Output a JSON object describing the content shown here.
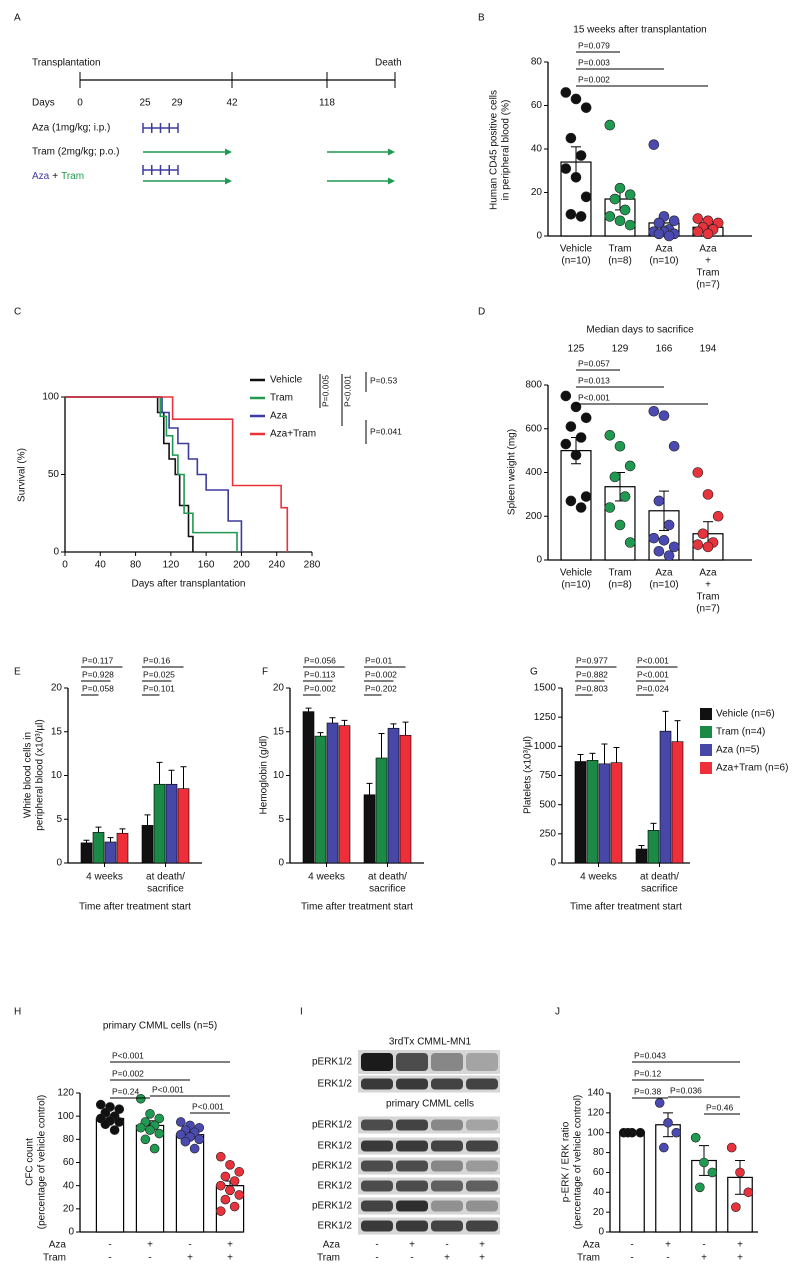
{
  "chart_data": [
    {
      "type": "timeline",
      "panel": "A",
      "start_label": "Transplantation",
      "end_label": "Death",
      "axis_label": "Days",
      "xticks": [
        0,
        25,
        29,
        42,
        118
      ],
      "arms": [
        {
          "name": "Aza (1mg/kg; i.p.)",
          "color": "#3c3ca0"
        },
        {
          "name": "Tram (2mg/kg; p.o.)",
          "color": "#1f9a50"
        },
        {
          "parts": [
            {
              "text": "Aza",
              "color": "#3c3ca0"
            },
            {
              "text": "+",
              "color": "#111111"
            },
            {
              "text": "Tram",
              "color": "#1f9a50"
            }
          ]
        }
      ]
    },
    {
      "type": "bar",
      "panel": "B",
      "title": "15 weeks after transplantation",
      "ylabel": [
        "Human CD45 positive cells",
        "in peripheral blood (%)"
      ],
      "categories": [
        [
          "Vehicle",
          "(n=10)"
        ],
        [
          "Tram",
          "(n=8)"
        ],
        [
          "Aza",
          "(n=10)"
        ],
        [
          "Aza",
          "+",
          "Tram",
          "(n=7)"
        ]
      ],
      "values": [
        34,
        17,
        6,
        4
      ],
      "errors": [
        7,
        5,
        3,
        1.5
      ],
      "points": [
        [
          66,
          63,
          59,
          45,
          37,
          31,
          27,
          18,
          10,
          9
        ],
        [
          51,
          22,
          19,
          17,
          12,
          9,
          7,
          5
        ],
        [
          42,
          9,
          7,
          6,
          3,
          2,
          2,
          1,
          1,
          0
        ],
        [
          8,
          7,
          6,
          4,
          3,
          2,
          1
        ]
      ],
      "point_colors": [
        "#111111",
        "#1f9a50",
        "#4a4ab0",
        "#e8323c"
      ],
      "comparisons": [
        "P=0.079",
        "P=0.003",
        "P=0.002"
      ],
      "ylim": [
        0,
        80
      ],
      "yticks": [
        0,
        20,
        40,
        60,
        80
      ]
    },
    {
      "type": "line",
      "panel": "C",
      "ylabel": [
        "Survival (%)"
      ],
      "xlabel": "Days after transplantation",
      "series": [
        {
          "name": "Vehicle",
          "color": "#111111",
          "x": [
            0,
            105,
            105,
            112,
            112,
            118,
            118,
            125,
            125,
            130,
            130,
            140,
            140,
            145,
            145
          ],
          "values": [
            100,
            100,
            90,
            90,
            70,
            70,
            60,
            60,
            50,
            50,
            30,
            30,
            10,
            10,
            0
          ]
        },
        {
          "name": "Tram",
          "color": "#1f9a50",
          "x": [
            0,
            108,
            108,
            115,
            115,
            122,
            122,
            128,
            128,
            135,
            135,
            145,
            145,
            195,
            195
          ],
          "values": [
            100,
            100,
            87.5,
            87.5,
            75,
            75,
            62.5,
            62.5,
            50,
            50,
            25,
            25,
            12.5,
            12.5,
            0
          ]
        },
        {
          "name": "Aza",
          "color": "#3c3ca0",
          "x": [
            0,
            110,
            110,
            118,
            118,
            128,
            128,
            140,
            140,
            150,
            150,
            160,
            160,
            185,
            185,
            200,
            200
          ],
          "values": [
            100,
            100,
            90,
            90,
            80,
            80,
            70,
            70,
            60,
            60,
            50,
            50,
            40,
            40,
            20,
            20,
            0
          ]
        },
        {
          "name": "Aza+Tram",
          "color": "#e8323c",
          "x": [
            0,
            122,
            122,
            190,
            190,
            245,
            245,
            252,
            252
          ],
          "values": [
            100,
            100,
            85.7,
            85.7,
            42.9,
            42.9,
            28.6,
            28.6,
            0
          ]
        }
      ],
      "p_values": [
        "P=0.005",
        "P<0.001",
        "P=0.53",
        "P=0.041"
      ],
      "xlim": [
        0,
        280
      ],
      "xticks": [
        0,
        40,
        80,
        120,
        160,
        200,
        240,
        280
      ],
      "ylim": [
        0,
        100
      ],
      "yticks": [
        0,
        50,
        100
      ]
    },
    {
      "type": "bar",
      "panel": "D",
      "title": "Median days to sacrifice",
      "median_days": [
        125,
        129,
        166,
        194
      ],
      "ylabel": [
        "Spleen weight (mg)"
      ],
      "categories": [
        [
          "Vehicle",
          "(n=10)"
        ],
        [
          "Tram",
          "(n=8)"
        ],
        [
          "Aza",
          "(n=10)"
        ],
        [
          "Aza",
          "+",
          "Tram",
          "(n=7)"
        ]
      ],
      "values": [
        500,
        335,
        225,
        120
      ],
      "errors": [
        60,
        65,
        90,
        55
      ],
      "points": [
        [
          750,
          700,
          650,
          610,
          560,
          530,
          480,
          290,
          270,
          240
        ],
        [
          570,
          520,
          430,
          380,
          290,
          240,
          160,
          80
        ],
        [
          680,
          660,
          520,
          270,
          160,
          100,
          90,
          60,
          40,
          20
        ],
        [
          400,
          300,
          200,
          120,
          80,
          70,
          60
        ]
      ],
      "point_colors": [
        "#111111",
        "#1f9a50",
        "#4a4ab0",
        "#e8323c"
      ],
      "comparisons": [
        "P=0.057",
        "P=0.013",
        "P<0.001"
      ],
      "ylim": [
        0,
        800
      ],
      "yticks": [
        0,
        200,
        400,
        600,
        800
      ]
    },
    {
      "type": "bar",
      "panel": "E",
      "ylabel": [
        "White blood cells in",
        "peripheral blood (x10³/µl)"
      ],
      "xlabel": "Time after treatment start",
      "categories": [
        [
          "4 weeks"
        ],
        [
          "at death/",
          "sacrifice"
        ]
      ],
      "series": [
        {
          "color": "#111111",
          "values": [
            2.3,
            4.3
          ],
          "errors": [
            0.3,
            1.2
          ]
        },
        {
          "color": "#1b8a46",
          "values": [
            3.5,
            9
          ],
          "errors": [
            0.6,
            2.5
          ]
        },
        {
          "color": "#4747a8",
          "values": [
            2.4,
            9
          ],
          "errors": [
            0.5,
            1.6
          ]
        },
        {
          "color": "#ee2f3a",
          "values": [
            3.4,
            8.5
          ],
          "errors": [
            0.5,
            2.5
          ]
        }
      ],
      "comparisons": [
        [
          "P=0.117",
          "P=0.928",
          "P=0.058"
        ],
        [
          "P=0.16",
          "P=0.025",
          "P=0.101"
        ]
      ],
      "ylim": [
        0,
        20
      ],
      "yticks": [
        0,
        5,
        10,
        15,
        20
      ]
    },
    {
      "type": "bar",
      "panel": "F",
      "ylabel": [
        "Hemoglobin (g/dl)"
      ],
      "xlabel": "Time after treatment start",
      "categories": [
        [
          "4 weeks"
        ],
        [
          "at death/",
          "sacrifice"
        ]
      ],
      "series": [
        {
          "color": "#111111",
          "values": [
            17.3,
            7.8
          ],
          "errors": [
            0.4,
            1.3
          ]
        },
        {
          "color": "#1b8a46",
          "values": [
            14.5,
            12
          ],
          "errors": [
            0.4,
            2.8
          ]
        },
        {
          "color": "#4747a8",
          "values": [
            16,
            15.4
          ],
          "errors": [
            0.6,
            0.5
          ]
        },
        {
          "color": "#ee2f3a",
          "values": [
            15.7,
            14.6
          ],
          "errors": [
            0.6,
            1.5
          ]
        }
      ],
      "comparisons": [
        [
          "P=0.056",
          "P=0.113",
          "P=0.002"
        ],
        [
          "P=0.01",
          "P=0.002",
          "P=0.202"
        ]
      ],
      "ylim": [
        0,
        20
      ],
      "yticks": [
        0,
        5,
        10,
        15,
        20
      ]
    },
    {
      "type": "bar",
      "panel": "G",
      "ylabel": [
        "Platelets (x10³/µl)"
      ],
      "xlabel": "Time after treatment start",
      "categories": [
        [
          "4 weeks"
        ],
        [
          "at death/",
          "sacrifice"
        ]
      ],
      "series": [
        {
          "name": "Vehicle (n=6)",
          "color": "#111111",
          "values": [
            870,
            120
          ],
          "errors": [
            60,
            30
          ]
        },
        {
          "name": "Tram (n=4)",
          "color": "#1b8a46",
          "values": [
            880,
            280
          ],
          "errors": [
            60,
            60
          ]
        },
        {
          "name": "Aza (n=5)",
          "color": "#4747a8",
          "values": [
            850,
            1130
          ],
          "errors": [
            170,
            170
          ]
        },
        {
          "name": "Aza+Tram (n=6)",
          "color": "#ee2f3a",
          "values": [
            860,
            1040
          ],
          "errors": [
            130,
            180
          ]
        }
      ],
      "comparisons": [
        [
          "P=0.977",
          "P=0.882",
          "P=0.803"
        ],
        [
          "P<0.001",
          "P<0.001",
          "P=0.024"
        ]
      ],
      "ylim": [
        0,
        1500
      ],
      "yticks": [
        0,
        250,
        500,
        750,
        1000,
        1250,
        1500
      ]
    },
    {
      "type": "bar",
      "panel": "H",
      "title": "primary CMML cells (n=5)",
      "ylabel": [
        "CFC count",
        "(percentage of vehicle control)"
      ],
      "values": [
        98,
        92,
        84,
        40
      ],
      "errors": [
        3,
        4,
        3,
        4
      ],
      "points": [
        [
          110,
          108,
          106,
          103,
          100,
          98,
          96,
          95,
          93,
          88
        ],
        [
          115,
          102,
          98,
          95,
          92,
          90,
          88,
          85,
          80,
          72
        ],
        [
          95,
          92,
          90,
          88,
          86,
          84,
          82,
          80,
          78,
          72
        ],
        [
          65,
          58,
          52,
          48,
          44,
          40,
          36,
          32,
          28,
          22,
          18
        ]
      ],
      "point_colors": [
        "#111111",
        "#1f9a50",
        "#4a4ab0",
        "#e8323c"
      ],
      "comparisons": [
        "P<0.001",
        "P=0.002",
        "P=0.24",
        "P<0.001",
        "P<0.001"
      ],
      "treatment": [
        {
          "name": "Aza",
          "signs": [
            "-",
            "+",
            "-",
            "+"
          ]
        },
        {
          "name": "Tram",
          "signs": [
            "-",
            "-",
            "+",
            "+"
          ]
        }
      ],
      "ylim": [
        0,
        120
      ],
      "yticks": [
        0,
        20,
        40,
        60,
        80,
        100,
        120
      ]
    },
    {
      "type": "blot",
      "panel": "I",
      "title": "3rdTx CMML-MN1",
      "rows": [
        "pERK1/2",
        "ERK1/2"
      ],
      "subtitle": "primary CMML cells",
      "rows2": [
        "pERK1/2",
        "ERK1/2",
        "pERK1/2",
        "ERK1/2",
        "pERK1/2",
        "ERK1/2"
      ],
      "treatment": [
        {
          "name": "Aza",
          "signs": [
            "-",
            "+",
            "-",
            "+"
          ]
        },
        {
          "name": "Tram",
          "signs": [
            "-",
            "-",
            "+",
            "+"
          ]
        }
      ]
    },
    {
      "type": "bar",
      "panel": "J",
      "ylabel": [
        "p-ERK / ERK ratio",
        "(percentage of vehicle control)"
      ],
      "values": [
        100,
        108,
        72,
        55
      ],
      "errors": [
        1,
        12,
        15,
        17
      ],
      "points": [
        [
          100,
          100,
          100,
          100
        ],
        [
          130,
          110,
          100,
          85
        ],
        [
          95,
          70,
          60,
          45
        ],
        [
          85,
          60,
          40,
          25
        ]
      ],
      "point_colors": [
        "#111111",
        "#4a4ab0",
        "#1f9a50",
        "#e8323c"
      ],
      "comparisons": [
        "P=0.043",
        "P=0.12",
        "P=0.38",
        "P=0.036",
        "P=0.46"
      ],
      "treatment": [
        {
          "name": "Aza",
          "signs": [
            "-",
            "+",
            "-",
            "+"
          ]
        },
        {
          "name": "Tram",
          "signs": [
            "-",
            "-",
            "+",
            "+"
          ]
        }
      ],
      "ylim": [
        0,
        140
      ],
      "yticks": [
        0,
        20,
        40,
        60,
        80,
        100,
        120,
        140
      ]
    }
  ]
}
